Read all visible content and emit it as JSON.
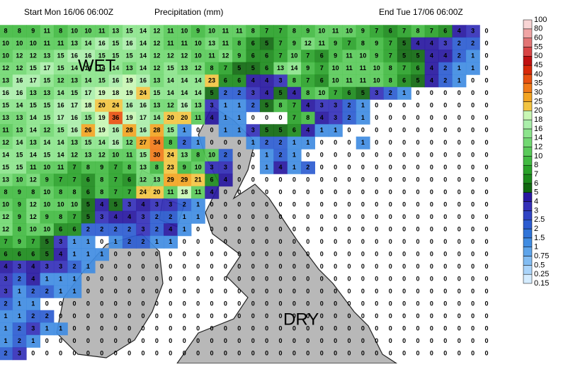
{
  "header": {
    "start": "Start Mon 16/06 06:00Z",
    "title": "Precipitation (mm)",
    "end": "End Tue 17/06 06:00Z"
  },
  "labels": {
    "wet": "WET",
    "dry": "DRY"
  },
  "grid": {
    "rows": [
      [
        8,
        8,
        9,
        11,
        8,
        10,
        10,
        11,
        13,
        15,
        14,
        12,
        11,
        10,
        9,
        10,
        11,
        11,
        8,
        7,
        7,
        8,
        9,
        10,
        11,
        10,
        9,
        7,
        6,
        7,
        8,
        7,
        6,
        4,
        3,
        0
      ],
      [
        10,
        10,
        10,
        11,
        11,
        13,
        14,
        16,
        15,
        16,
        14,
        12,
        11,
        11,
        10,
        13,
        11,
        8,
        6,
        5,
        7,
        9,
        12,
        11,
        9,
        7,
        8,
        9,
        7,
        5,
        4,
        4,
        3,
        2,
        2,
        0
      ],
      [
        10,
        12,
        12,
        13,
        15,
        16,
        16,
        15,
        15,
        15,
        14,
        12,
        12,
        12,
        10,
        11,
        12,
        9,
        6,
        6,
        7,
        10,
        7,
        6,
        9,
        11,
        10,
        9,
        7,
        5,
        5,
        4,
        4,
        2,
        1,
        0
      ],
      [
        12,
        12,
        15,
        17,
        15,
        14,
        14,
        14,
        14,
        13,
        14,
        12,
        15,
        13,
        12,
        8,
        7,
        5,
        5,
        6,
        13,
        14,
        9,
        7,
        10,
        11,
        11,
        10,
        8,
        7,
        6,
        4,
        2,
        1,
        1,
        0
      ],
      [
        13,
        16,
        17,
        15,
        12,
        13,
        14,
        15,
        16,
        19,
        16,
        13,
        14,
        14,
        14,
        23,
        6,
        6,
        4,
        4,
        3,
        8,
        7,
        6,
        10,
        11,
        11,
        10,
        8,
        6,
        5,
        4,
        2,
        1,
        0,
        0
      ],
      [
        16,
        16,
        13,
        13,
        14,
        15,
        17,
        19,
        18,
        19,
        24,
        15,
        14,
        14,
        14,
        5,
        2,
        2,
        3,
        4,
        5,
        4,
        8,
        10,
        7,
        6,
        5,
        3,
        2,
        1,
        0,
        0,
        0,
        0,
        0,
        0
      ],
      [
        15,
        14,
        15,
        15,
        16,
        17,
        18,
        20,
        24,
        16,
        16,
        13,
        12,
        16,
        13,
        3,
        1,
        1,
        2,
        5,
        8,
        7,
        4,
        3,
        3,
        2,
        1,
        0,
        0,
        0,
        0,
        0,
        0,
        0,
        0,
        0
      ],
      [
        13,
        13,
        14,
        15,
        17,
        16,
        15,
        19,
        36,
        19,
        17,
        14,
        20,
        20,
        11,
        4,
        1,
        1,
        0,
        0,
        0,
        7,
        8,
        4,
        3,
        2,
        1,
        0,
        0,
        0,
        0,
        0,
        0,
        0,
        0,
        0
      ],
      [
        11,
        13,
        14,
        12,
        15,
        16,
        26,
        19,
        16,
        28,
        16,
        28,
        15,
        1,
        0,
        0,
        1,
        1,
        3,
        5,
        5,
        6,
        4,
        1,
        1,
        0,
        0,
        0,
        0,
        0,
        0,
        0,
        0,
        0,
        0,
        0
      ],
      [
        12,
        14,
        13,
        14,
        14,
        13,
        15,
        14,
        16,
        12,
        27,
        34,
        8,
        2,
        1,
        0,
        0,
        0,
        1,
        2,
        2,
        1,
        1,
        0,
        0,
        0,
        1,
        0,
        0,
        0,
        0,
        0,
        0,
        0,
        0,
        0
      ],
      [
        14,
        15,
        14,
        15,
        14,
        12,
        13,
        12,
        10,
        11,
        15,
        30,
        24,
        13,
        8,
        10,
        2,
        0,
        0,
        1,
        2,
        1,
        0,
        0,
        0,
        0,
        0,
        0,
        0,
        0,
        0,
        0,
        0,
        0,
        0,
        0
      ],
      [
        15,
        15,
        11,
        10,
        11,
        7,
        8,
        9,
        7,
        8,
        13,
        8,
        23,
        9,
        10,
        3,
        3,
        0,
        0,
        1,
        4,
        1,
        2,
        0,
        0,
        0,
        0,
        0,
        0,
        0,
        0,
        0,
        0,
        0,
        0,
        0
      ],
      [
        13,
        10,
        12,
        9,
        7,
        7,
        6,
        8,
        7,
        6,
        12,
        13,
        29,
        29,
        21,
        6,
        4,
        0,
        0,
        0,
        0,
        0,
        0,
        0,
        0,
        0,
        0,
        0,
        0,
        0,
        0,
        0,
        0,
        0,
        0,
        0
      ],
      [
        8,
        9,
        8,
        10,
        8,
        8,
        6,
        8,
        7,
        7,
        24,
        20,
        11,
        18,
        11,
        4,
        0,
        0,
        0,
        0,
        0,
        0,
        0,
        0,
        0,
        0,
        0,
        0,
        0,
        0,
        0,
        0,
        0,
        0,
        0,
        0
      ],
      [
        10,
        9,
        12,
        10,
        10,
        10,
        5,
        4,
        5,
        3,
        4,
        3,
        3,
        2,
        1,
        0,
        0,
        0,
        0,
        0,
        0,
        0,
        0,
        0,
        0,
        0,
        0,
        0,
        0,
        0,
        0,
        0,
        0,
        0,
        0,
        0
      ],
      [
        12,
        9,
        12,
        9,
        8,
        7,
        5,
        3,
        4,
        4,
        3,
        2,
        2,
        1,
        1,
        0,
        0,
        0,
        0,
        0,
        0,
        0,
        0,
        0,
        0,
        0,
        0,
        0,
        0,
        0,
        0,
        0,
        0,
        0,
        0,
        0
      ],
      [
        12,
        8,
        10,
        10,
        6,
        6,
        2,
        2,
        2,
        2,
        3,
        2,
        4,
        1,
        0,
        0,
        0,
        0,
        0,
        0,
        0,
        0,
        0,
        0,
        0,
        0,
        0,
        0,
        0,
        0,
        0,
        0,
        0,
        0,
        0,
        0
      ],
      [
        7,
        9,
        7,
        5,
        3,
        1,
        1,
        0,
        1,
        2,
        2,
        1,
        1,
        0,
        0,
        0,
        0,
        0,
        0,
        0,
        0,
        0,
        0,
        0,
        0,
        0,
        0,
        0,
        0,
        0,
        0,
        0,
        0,
        0,
        0,
        0
      ],
      [
        6,
        6,
        6,
        5,
        4,
        1,
        1,
        1,
        0,
        0,
        0,
        0,
        0,
        0,
        0,
        0,
        0,
        0,
        0,
        0,
        0,
        0,
        0,
        0,
        0,
        0,
        0,
        0,
        0,
        0,
        0,
        0,
        0,
        0,
        0,
        0
      ],
      [
        4,
        3,
        4,
        3,
        3,
        2,
        1,
        0,
        0,
        0,
        0,
        0,
        0,
        0,
        0,
        0,
        0,
        0,
        0,
        0,
        0,
        0,
        0,
        0,
        0,
        0,
        0,
        0,
        0,
        0,
        0,
        0,
        0,
        0,
        0,
        0
      ],
      [
        3,
        2,
        4,
        1,
        1,
        1,
        0,
        0,
        0,
        0,
        0,
        0,
        0,
        0,
        0,
        0,
        0,
        0,
        0,
        0,
        0,
        0,
        0,
        0,
        0,
        0,
        0,
        0,
        0,
        0,
        0,
        0,
        0,
        0,
        0,
        0
      ],
      [
        3,
        1,
        2,
        2,
        1,
        1,
        0,
        0,
        0,
        0,
        0,
        0,
        0,
        0,
        0,
        0,
        0,
        0,
        0,
        0,
        0,
        0,
        0,
        0,
        0,
        0,
        0,
        0,
        0,
        0,
        0,
        0,
        0,
        0,
        0,
        0
      ],
      [
        2,
        1,
        1,
        0,
        0,
        0,
        0,
        0,
        0,
        0,
        0,
        0,
        0,
        0,
        0,
        0,
        0,
        0,
        0,
        0,
        0,
        0,
        0,
        0,
        0,
        0,
        0,
        0,
        0,
        0,
        0,
        0,
        0,
        0,
        0,
        0
      ],
      [
        1,
        1,
        2,
        2,
        0,
        0,
        0,
        0,
        0,
        0,
        0,
        0,
        0,
        0,
        0,
        0,
        0,
        0,
        0,
        0,
        0,
        0,
        0,
        0,
        0,
        0,
        0,
        0,
        0,
        0,
        0,
        0,
        0,
        0,
        0,
        0
      ],
      [
        1,
        2,
        3,
        1,
        1,
        0,
        0,
        0,
        0,
        0,
        0,
        0,
        0,
        0,
        0,
        0,
        0,
        0,
        0,
        0,
        0,
        0,
        0,
        0,
        0,
        0,
        0,
        0,
        0,
        0,
        0,
        0,
        0,
        0,
        0,
        0
      ],
      [
        1,
        2,
        1,
        0,
        0,
        0,
        0,
        0,
        0,
        0,
        0,
        0,
        0,
        0,
        0,
        0,
        0,
        0,
        0,
        0,
        0,
        0,
        0,
        0,
        0,
        0,
        0,
        0,
        0,
        0,
        0,
        0,
        0,
        0,
        0,
        0
      ],
      [
        2,
        3,
        0,
        0,
        0,
        0,
        0,
        0,
        0,
        0,
        0,
        0,
        0,
        0,
        0,
        0,
        0,
        0,
        0,
        0,
        0,
        0,
        0,
        0,
        0,
        0,
        0,
        0,
        0,
        0,
        0,
        0,
        0,
        0,
        0,
        0
      ]
    ]
  },
  "legend": {
    "levels": [
      0.15,
      0.25,
      0.5,
      0.75,
      1,
      1.5,
      2,
      2.5,
      3,
      4,
      5,
      6,
      7,
      8,
      10,
      12,
      14,
      16,
      18,
      20,
      25,
      30,
      35,
      40,
      45,
      50,
      55,
      60,
      80,
      100
    ],
    "colors": [
      "#d4ecff",
      "#aad4fa",
      "#82bcf2",
      "#5ea4ea",
      "#408ce2",
      "#3074d8",
      "#2c5cd0",
      "#3044c4",
      "#3430b8",
      "#2818a0",
      "#106810",
      "#1c8a1c",
      "#2aa22a",
      "#42ba42",
      "#5aca5a",
      "#72d872",
      "#8ce48c",
      "#aaeeaa",
      "#c8f6b4",
      "#f2c442",
      "#f2a422",
      "#f07a18",
      "#e85010",
      "#d82808",
      "#c01010",
      "#d84444",
      "#e27474",
      "#f0a4a4",
      "#f8d4d4"
    ]
  }
}
